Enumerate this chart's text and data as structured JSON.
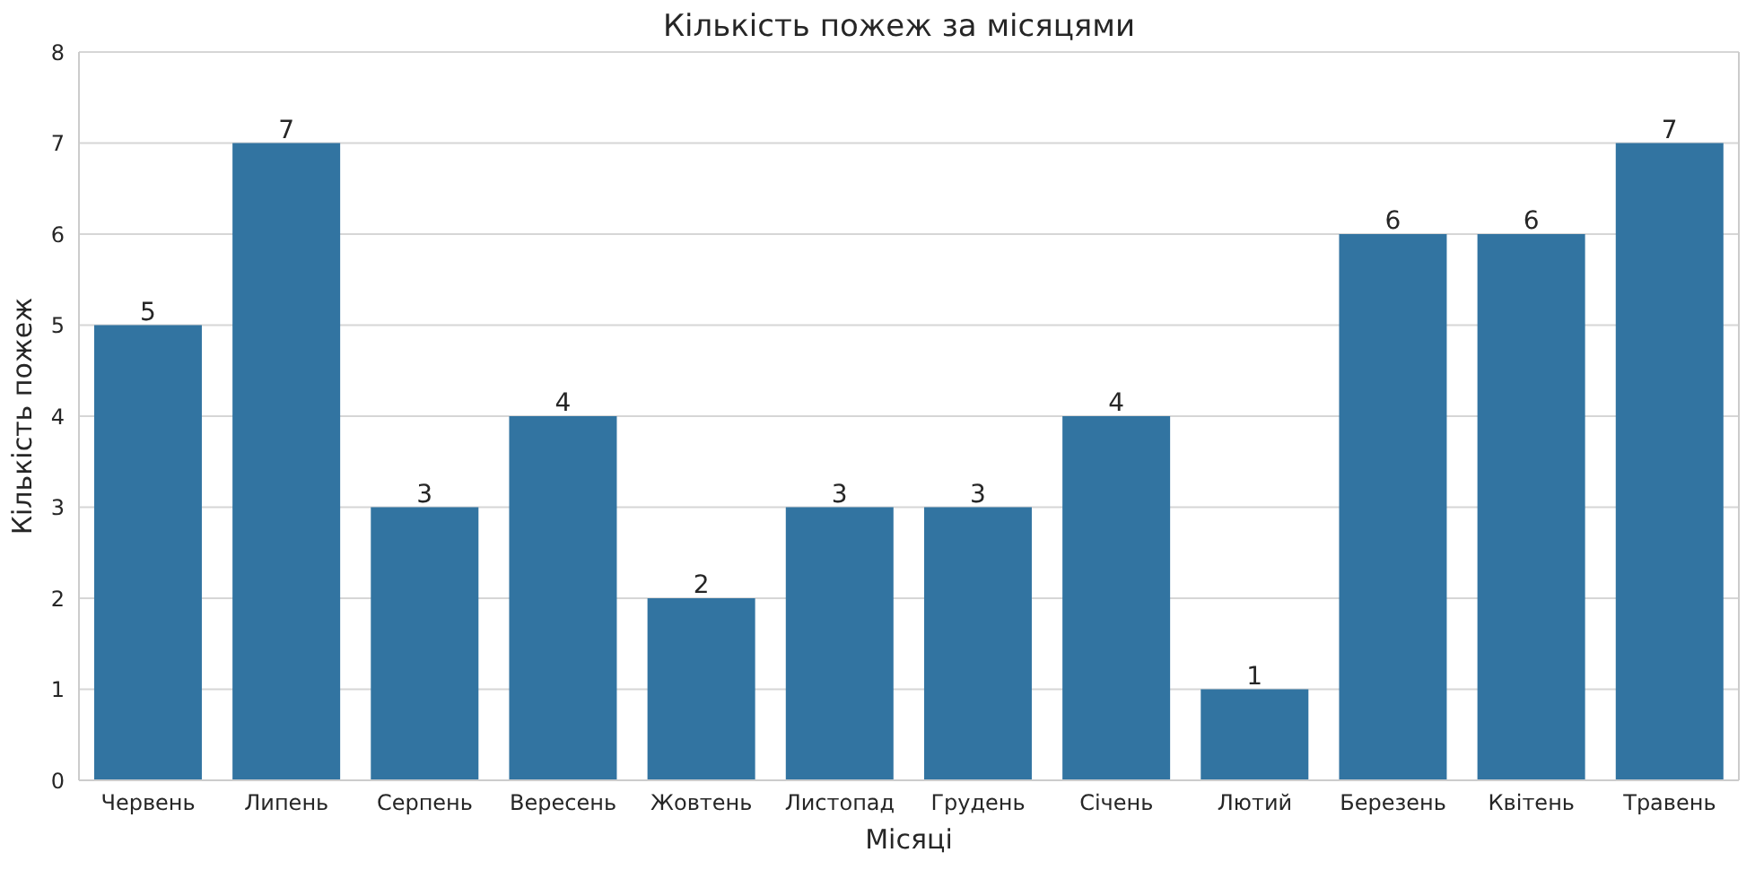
{
  "chart_data": {
    "type": "bar",
    "title": "Кількість пожеж за місяцями",
    "xlabel": "Місяці",
    "ylabel": "Кількість пожеж",
    "categories": [
      "Червень",
      "Липень",
      "Серпень",
      "Вересень",
      "Жовтень",
      "Листопад",
      "Грудень",
      "Січень",
      "Лютий",
      "Березень",
      "Квітень",
      "Травень"
    ],
    "values": [
      5,
      7,
      3,
      4,
      2,
      3,
      3,
      4,
      1,
      6,
      6,
      7
    ],
    "color": "#3274a1",
    "ylim": [
      0,
      8
    ],
    "yticks": [
      0,
      1,
      2,
      3,
      4,
      5,
      6,
      7,
      8
    ],
    "grid": "y",
    "data_labels": true
  }
}
